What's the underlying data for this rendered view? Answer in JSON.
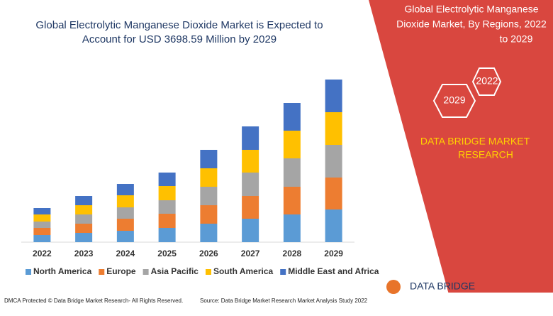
{
  "chart_data": {
    "type": "bar",
    "stacked": true,
    "title": [
      "Global Electrolytic Manganese Dioxide Market is Expected to",
      "Account for USD 3698.59 Million by 2029"
    ],
    "categories": [
      "2022",
      "2023",
      "2024",
      "2025",
      "2026",
      "2027",
      "2028",
      "2029"
    ],
    "series": [
      {
        "name": "North America",
        "color": "#5b9bd5",
        "values": [
          10,
          13,
          16,
          20,
          26,
          33,
          39,
          46
        ]
      },
      {
        "name": "Europe",
        "color": "#ed7d31",
        "values": [
          10,
          13,
          17,
          20,
          26,
          32,
          39,
          45
        ]
      },
      {
        "name": "Asia Pacific",
        "color": "#a5a5a5",
        "values": [
          9,
          13,
          16,
          19,
          26,
          33,
          40,
          46
        ]
      },
      {
        "name": "South America",
        "color": "#ffc000",
        "values": [
          10,
          13,
          17,
          20,
          26,
          32,
          39,
          46
        ]
      },
      {
        "name": "Middle East and Africa",
        "color": "#4472c4",
        "values": [
          9,
          13,
          16,
          19,
          26,
          33,
          39,
          46
        ]
      }
    ]
  },
  "side_panel": {
    "title": [
      "Global Electrolytic Manganese",
      "Dioxide Market, By Regions, 2022",
      "to 2029"
    ],
    "hexagons": [
      "2022",
      "2029"
    ],
    "brand": [
      "DATA BRIDGE MARKET",
      "RESEARCH"
    ]
  },
  "footer": {
    "left": "DMCA Protected © Data Bridge Market Research- All Rights Reserved.",
    "source": "Source: Data Bridge Market Research Market Analysis Study 2022",
    "logo": "DATA BRIDGE"
  }
}
